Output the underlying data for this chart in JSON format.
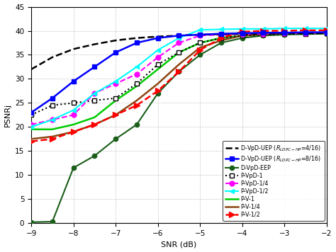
{
  "snr": [
    -9,
    -8.5,
    -8,
    -7.5,
    -7,
    -6.5,
    -6,
    -5.5,
    -5,
    -4.5,
    -4,
    -3.5,
    -3,
    -2.5,
    -2
  ],
  "D_VpD_UEP_4": [
    32.0,
    34.5,
    36.2,
    37.2,
    38.0,
    38.5,
    38.8,
    39.0,
    39.2,
    39.3,
    39.4,
    39.4,
    39.5,
    39.5,
    39.5
  ],
  "D_VpD_UEP_8": [
    23.0,
    26.0,
    29.5,
    32.5,
    35.5,
    37.5,
    38.5,
    39.0,
    39.2,
    39.4,
    39.5,
    39.6,
    39.6,
    39.7,
    39.7
  ],
  "D_VpD_EEP": [
    0.2,
    0.3,
    11.5,
    14.0,
    17.5,
    20.5,
    27.0,
    31.5,
    35.0,
    37.5,
    38.5,
    39.0,
    39.2,
    39.3,
    39.4
  ],
  "P_VpD_1": [
    22.5,
    24.5,
    25.0,
    25.5,
    26.0,
    29.0,
    33.0,
    35.5,
    37.5,
    38.5,
    39.0,
    39.2,
    39.3,
    39.4,
    39.5
  ],
  "P_VpD_14": [
    20.5,
    21.5,
    22.5,
    27.0,
    29.0,
    31.0,
    34.5,
    37.5,
    39.0,
    39.2,
    39.3,
    39.4,
    39.5,
    39.5,
    39.6
  ],
  "P_VpD_12": [
    20.0,
    21.5,
    23.5,
    27.0,
    29.5,
    32.5,
    36.0,
    38.5,
    40.2,
    40.3,
    40.4,
    40.4,
    40.5,
    40.5,
    40.5
  ],
  "P_V_1": [
    19.5,
    19.5,
    20.5,
    22.0,
    25.5,
    28.5,
    32.0,
    35.5,
    37.5,
    38.5,
    39.0,
    39.2,
    39.4,
    39.5,
    39.6
  ],
  "P_V_14": [
    17.5,
    18.0,
    19.0,
    20.5,
    22.5,
    25.5,
    29.0,
    33.0,
    36.5,
    38.0,
    39.0,
    39.2,
    39.4,
    39.5,
    39.6
  ],
  "P_V_12": [
    17.0,
    17.5,
    19.0,
    20.5,
    22.5,
    24.5,
    27.5,
    31.5,
    36.0,
    38.5,
    39.8,
    40.0,
    40.0,
    40.1,
    40.1
  ],
  "ylabel": "PSNRj",
  "xlabel": "SNR (dB)",
  "ylim": [
    0,
    45
  ],
  "xlim": [
    -9,
    -2
  ],
  "xticks": [
    -9,
    -8,
    -7,
    -6,
    -5,
    -4,
    -3,
    -2
  ],
  "yticks": [
    0,
    5,
    10,
    15,
    20,
    25,
    30,
    35,
    40,
    45
  ]
}
